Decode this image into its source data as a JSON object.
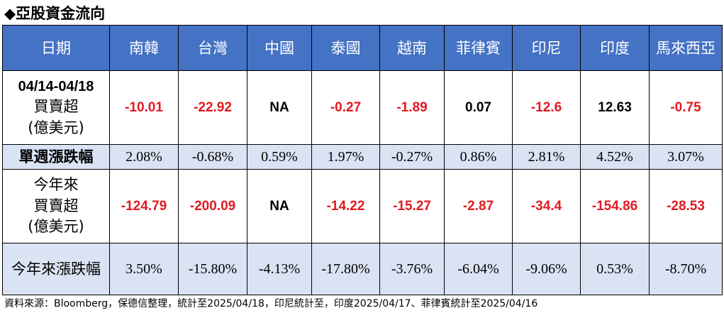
{
  "title": "◆亞股資金流向",
  "header": {
    "date_label": "日期",
    "markets": [
      "南韓",
      "台灣",
      "中國",
      "泰國",
      "越南",
      "菲律賓",
      "印尼",
      "印度",
      "馬來西亞"
    ]
  },
  "rows": {
    "weekly_flow": {
      "label_line1": "04/14-04/18",
      "label_line2": "買賣超",
      "label_line3": "(億美元)",
      "values": [
        "-10.01",
        "-22.92",
        "NA",
        "-0.27",
        "-1.89",
        "0.07",
        "-12.6",
        "12.63",
        "-0.75"
      ]
    },
    "weekly_change": {
      "label": "單週漲跌幅",
      "values": [
        "2.08%",
        "-0.68%",
        "0.59%",
        "1.97%",
        "-0.27%",
        "0.86%",
        "2.81%",
        "4.52%",
        "3.07%"
      ]
    },
    "ytd_flow": {
      "label_line1": "今年來",
      "label_line2": "買賣超",
      "label_line3": "(億美元)",
      "values": [
        "-124.79",
        "-200.09",
        "NA",
        "-14.22",
        "-15.27",
        "-2.87",
        "-34.4",
        "-154.86",
        "-28.53"
      ]
    },
    "ytd_change": {
      "label": "今年來漲跌幅",
      "values": [
        "3.50%",
        "-15.80%",
        "-4.13%",
        "-17.80%",
        "-3.76%",
        "-6.04%",
        "-9.06%",
        "0.53%",
        "-8.70%"
      ]
    }
  },
  "colors": {
    "header_bg": "#4472c4",
    "shaded_row_bg": "#dae3f3",
    "negative_text": "#e21a22",
    "positive_text": "#000000"
  },
  "footer_note": "資料來源：Bloomberg，保德信整理，統計至2025/04/18，印尼統計至，印度2025/04/17、菲律賓統計至2025/04/16"
}
